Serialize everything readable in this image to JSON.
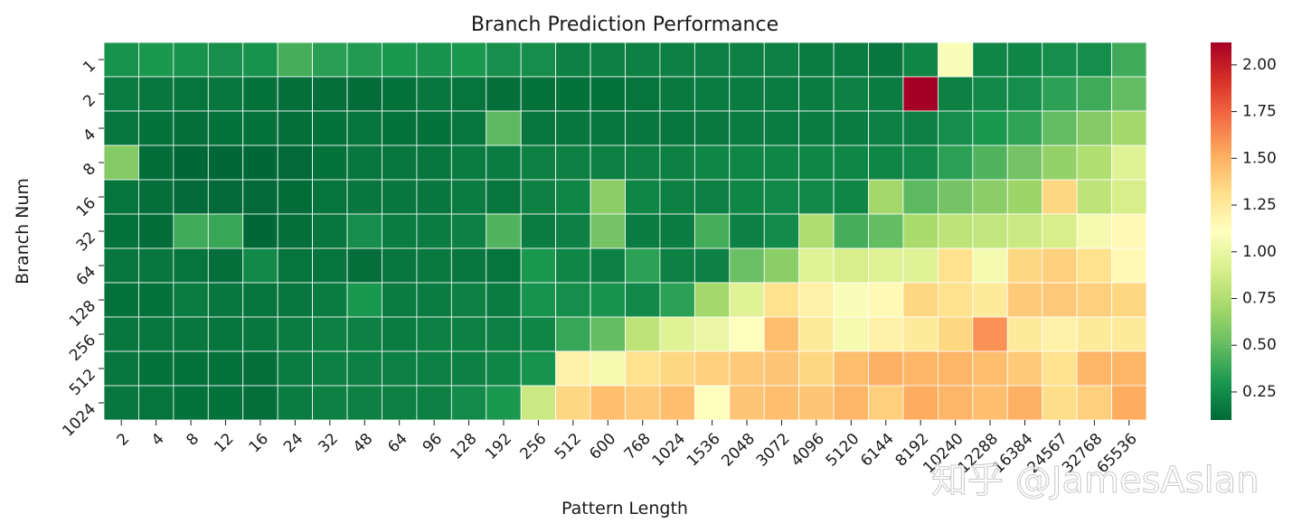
{
  "chart_data": {
    "type": "heatmap",
    "title": "Branch Prediction Performance",
    "xlabel": "Pattern Length",
    "ylabel": "Branch Num",
    "x_categories": [
      "2",
      "4",
      "8",
      "12",
      "16",
      "24",
      "32",
      "48",
      "64",
      "96",
      "128",
      "192",
      "256",
      "512",
      "600",
      "768",
      "1024",
      "1536",
      "2048",
      "3072",
      "4096",
      "5120",
      "6144",
      "8192",
      "10240",
      "12288",
      "16384",
      "24567",
      "32768",
      "65536"
    ],
    "y_categories": [
      "1",
      "2",
      "4",
      "8",
      "16",
      "32",
      "64",
      "128",
      "256",
      "512",
      "1024"
    ],
    "colormap": "RdYlGn_r",
    "value_range": [
      0.1,
      2.12
    ],
    "colorbar_ticks": [
      "0.25",
      "0.50",
      "0.75",
      "1.00",
      "1.25",
      "1.50",
      "1.75",
      "2.00"
    ],
    "colorbar_tick_values": [
      0.25,
      0.5,
      0.75,
      1.0,
      1.25,
      1.5,
      1.75,
      2.0
    ],
    "values": [
      [
        0.28,
        0.3,
        0.28,
        0.27,
        0.28,
        0.42,
        0.34,
        0.32,
        0.3,
        0.28,
        0.3,
        0.27,
        0.26,
        0.2,
        0.2,
        0.2,
        0.2,
        0.2,
        0.2,
        0.2,
        0.18,
        0.18,
        0.16,
        0.22,
        1.08,
        0.22,
        0.22,
        0.26,
        0.26,
        0.4
      ],
      [
        0.18,
        0.16,
        0.15,
        0.16,
        0.14,
        0.13,
        0.13,
        0.12,
        0.14,
        0.16,
        0.15,
        0.13,
        0.14,
        0.14,
        0.14,
        0.15,
        0.17,
        0.18,
        0.18,
        0.18,
        0.18,
        0.2,
        0.18,
        2.12,
        0.2,
        0.24,
        0.26,
        0.35,
        0.4,
        0.5
      ],
      [
        0.16,
        0.14,
        0.13,
        0.14,
        0.14,
        0.13,
        0.14,
        0.15,
        0.14,
        0.14,
        0.16,
        0.48,
        0.16,
        0.16,
        0.16,
        0.16,
        0.16,
        0.17,
        0.18,
        0.18,
        0.18,
        0.18,
        0.2,
        0.2,
        0.26,
        0.3,
        0.36,
        0.5,
        0.6,
        0.7
      ],
      [
        0.6,
        0.12,
        0.1,
        0.1,
        0.1,
        0.11,
        0.14,
        0.16,
        0.16,
        0.16,
        0.18,
        0.18,
        0.2,
        0.2,
        0.2,
        0.2,
        0.2,
        0.22,
        0.22,
        0.22,
        0.22,
        0.22,
        0.22,
        0.25,
        0.35,
        0.45,
        0.55,
        0.65,
        0.75,
        0.95
      ],
      [
        0.15,
        0.13,
        0.11,
        0.11,
        0.11,
        0.12,
        0.15,
        0.16,
        0.16,
        0.16,
        0.18,
        0.16,
        0.2,
        0.22,
        0.62,
        0.22,
        0.2,
        0.2,
        0.22,
        0.24,
        0.24,
        0.22,
        0.7,
        0.48,
        0.55,
        0.62,
        0.68,
        1.35,
        0.8,
        0.9
      ],
      [
        0.14,
        0.12,
        0.4,
        0.38,
        0.1,
        0.13,
        0.16,
        0.26,
        0.18,
        0.18,
        0.2,
        0.45,
        0.18,
        0.2,
        0.55,
        0.18,
        0.18,
        0.42,
        0.2,
        0.25,
        0.74,
        0.42,
        0.5,
        0.72,
        0.8,
        0.82,
        0.85,
        0.9,
        1.05,
        1.15
      ],
      [
        0.16,
        0.16,
        0.15,
        0.13,
        0.24,
        0.15,
        0.15,
        0.13,
        0.16,
        0.17,
        0.16,
        0.15,
        0.3,
        0.22,
        0.2,
        0.35,
        0.2,
        0.2,
        0.52,
        0.62,
        0.95,
        0.9,
        0.95,
        0.95,
        1.3,
        1.05,
        1.35,
        1.38,
        1.3,
        1.15
      ],
      [
        0.14,
        0.14,
        0.18,
        0.16,
        0.15,
        0.16,
        0.18,
        0.3,
        0.18,
        0.18,
        0.2,
        0.18,
        0.28,
        0.26,
        0.28,
        0.24,
        0.35,
        0.7,
        0.95,
        1.3,
        1.2,
        1.08,
        1.15,
        1.35,
        1.3,
        1.25,
        1.4,
        1.4,
        1.38,
        1.35
      ],
      [
        0.16,
        0.16,
        0.16,
        0.15,
        0.16,
        0.18,
        0.2,
        0.2,
        0.18,
        0.2,
        0.2,
        0.2,
        0.22,
        0.38,
        0.5,
        0.8,
        0.95,
        1.0,
        1.1,
        1.45,
        1.25,
        1.05,
        1.2,
        1.25,
        1.35,
        1.6,
        1.25,
        1.2,
        1.25,
        1.25
      ],
      [
        0.16,
        0.14,
        0.14,
        0.14,
        0.13,
        0.18,
        0.2,
        0.2,
        0.2,
        0.2,
        0.2,
        0.22,
        0.28,
        1.2,
        1.05,
        1.3,
        1.35,
        1.38,
        1.4,
        1.42,
        1.35,
        1.45,
        1.5,
        1.48,
        1.48,
        1.45,
        1.4,
        1.3,
        1.48,
        1.48
      ],
      [
        0.16,
        0.15,
        0.14,
        0.14,
        0.13,
        0.18,
        0.2,
        0.2,
        0.2,
        0.2,
        0.25,
        0.3,
        0.85,
        1.35,
        1.45,
        1.4,
        1.45,
        1.1,
        1.42,
        1.45,
        1.42,
        1.48,
        1.38,
        1.52,
        1.48,
        1.45,
        1.5,
        1.32,
        1.38,
        1.52
      ]
    ]
  },
  "watermark": "知乎 @JamesAslan"
}
